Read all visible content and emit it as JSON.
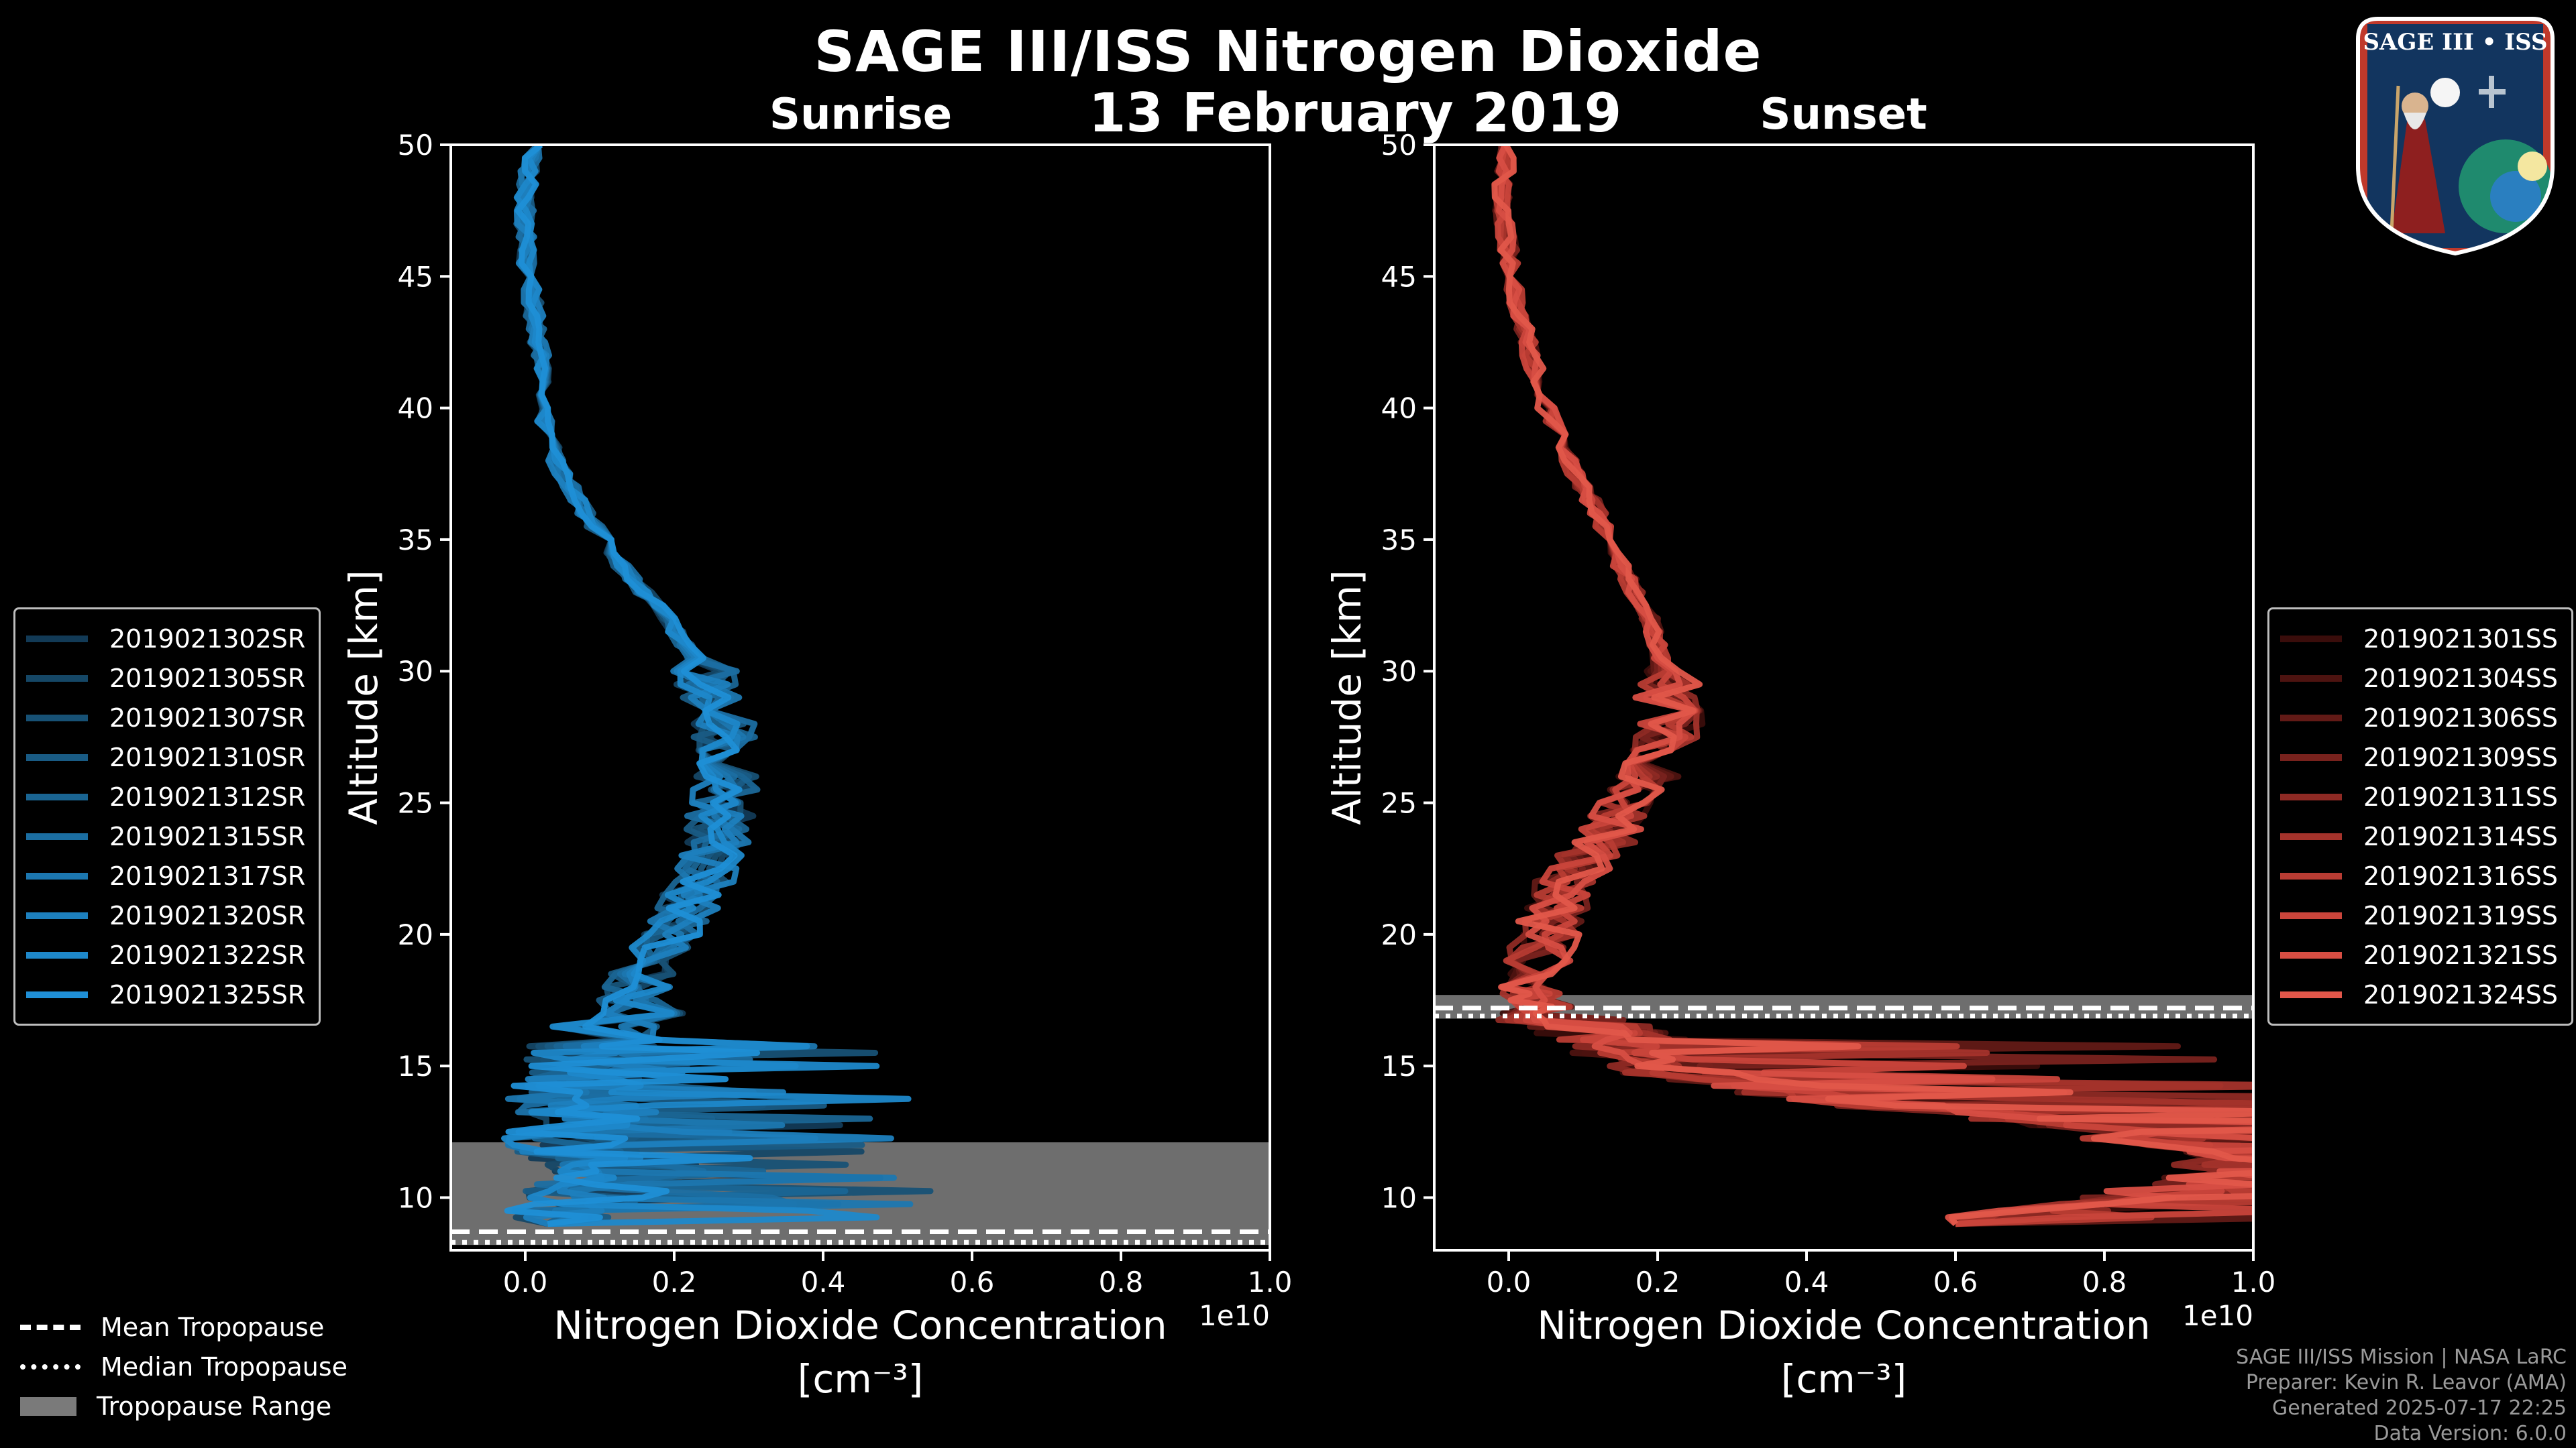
{
  "title": "SAGE III/ISS Nitrogen Dioxide",
  "date": "13 February 2019",
  "logo_text": "SAGE III • ISS",
  "credits": [
    "SAGE III/ISS Mission | NASA LaRC",
    "Preparer: Kevin R. Leavor (AMA)",
    "Generated 2025-07-17 22:25",
    "Data Version: 6.0.0"
  ],
  "tropopause_legend": {
    "mean": "Mean Tropopause",
    "median": "Median Tropopause",
    "range": "Tropopause Range"
  },
  "colors": {
    "sunrise": "#1f8fd6",
    "sunset": "#e2574a",
    "tropopause_range": "#7a7a7a",
    "background": "#000000"
  },
  "chart_data": [
    {
      "type": "line",
      "title": "Sunrise",
      "xlabel": "Nitrogen Dioxide Concentration",
      "xunit": "[cm⁻³]",
      "ylabel": "Altitude [km]",
      "x_scale_label": "1e10",
      "xlim": [
        -0.1,
        1.0
      ],
      "ylim": [
        8,
        50
      ],
      "x_ticks": [
        "0.0",
        "0.2",
        "0.4",
        "0.6",
        "0.8",
        "1.0"
      ],
      "x_tick_values": [
        0.0,
        0.2,
        0.4,
        0.6,
        0.8,
        1.0
      ],
      "y_ticks": [
        10,
        15,
        20,
        25,
        30,
        35,
        40,
        45,
        50
      ],
      "legend_position": "left",
      "tropopause": {
        "mean": 8.7,
        "median": 8.3,
        "range": [
          8.2,
          12.1
        ]
      },
      "profile_altitudes": [
        50,
        48,
        46,
        44,
        42,
        40,
        38,
        36,
        34,
        32,
        30,
        28,
        26,
        24,
        22,
        20,
        18,
        16,
        15,
        14,
        13,
        12,
        11,
        10,
        9
      ],
      "profile_x_1e10": [
        0.01,
        0.0,
        0.0,
        0.01,
        0.02,
        0.02,
        0.04,
        0.08,
        0.13,
        0.19,
        0.24,
        0.27,
        0.27,
        0.26,
        0.24,
        0.19,
        0.15,
        0.1,
        0.08,
        0.06,
        0.08,
        0.05,
        0.12,
        0.08,
        0.03
      ],
      "series": [
        {
          "name": "2019021302SR",
          "color": "#123a56"
        },
        {
          "name": "2019021305SR",
          "color": "#154766"
        },
        {
          "name": "2019021307SR",
          "color": "#175175"
        },
        {
          "name": "2019021310SR",
          "color": "#195b84"
        },
        {
          "name": "2019021312SR",
          "color": "#1a6593"
        },
        {
          "name": "2019021315SR",
          "color": "#1b6ea2"
        },
        {
          "name": "2019021317SR",
          "color": "#1c77b0"
        },
        {
          "name": "2019021320SR",
          "color": "#1d80be"
        },
        {
          "name": "2019021322SR",
          "color": "#1e88ca"
        },
        {
          "name": "2019021325SR",
          "color": "#1f8fd6"
        }
      ]
    },
    {
      "type": "line",
      "title": "Sunset",
      "xlabel": "Nitrogen Dioxide Concentration",
      "xunit": "[cm⁻³]",
      "ylabel": "Altitude [km]",
      "x_scale_label": "1e10",
      "xlim": [
        -0.1,
        1.0
      ],
      "ylim": [
        8,
        50
      ],
      "x_ticks": [
        "0.0",
        "0.2",
        "0.4",
        "0.6",
        "0.8",
        "1.0"
      ],
      "x_tick_values": [
        0.0,
        0.2,
        0.4,
        0.6,
        0.8,
        1.0
      ],
      "y_ticks": [
        10,
        15,
        20,
        25,
        30,
        35,
        40,
        45,
        50
      ],
      "legend_position": "right",
      "tropopause": {
        "mean": 17.2,
        "median": 16.9,
        "range": [
          16.8,
          17.7
        ]
      },
      "profile_altitudes": [
        50,
        48,
        46,
        44,
        42,
        40,
        38,
        36,
        34,
        32,
        30,
        28,
        26,
        24,
        22,
        20,
        18,
        17,
        16,
        15,
        14,
        13,
        12,
        11,
        10,
        9
      ],
      "profile_x_1e10": [
        0.0,
        -0.01,
        0.0,
        0.01,
        0.03,
        0.05,
        0.08,
        0.12,
        0.15,
        0.19,
        0.21,
        0.22,
        0.19,
        0.14,
        0.08,
        0.05,
        0.03,
        0.05,
        0.15,
        0.2,
        0.35,
        0.7,
        0.9,
        1.0,
        0.85,
        0.6
      ],
      "series": [
        {
          "name": "2019021301SS",
          "color": "#3a0d0b"
        },
        {
          "name": "2019021304SS",
          "color": "#4d1310"
        },
        {
          "name": "2019021306SS",
          "color": "#621a16"
        },
        {
          "name": "2019021309SS",
          "color": "#78221d"
        },
        {
          "name": "2019021311SS",
          "color": "#8e2a24"
        },
        {
          "name": "2019021314SS",
          "color": "#a4332b"
        },
        {
          "name": "2019021316SS",
          "color": "#b83c33"
        },
        {
          "name": "2019021319SS",
          "color": "#c9453b"
        },
        {
          "name": "2019021321SS",
          "color": "#d74e43"
        },
        {
          "name": "2019021324SS",
          "color": "#e2574a"
        }
      ]
    }
  ]
}
